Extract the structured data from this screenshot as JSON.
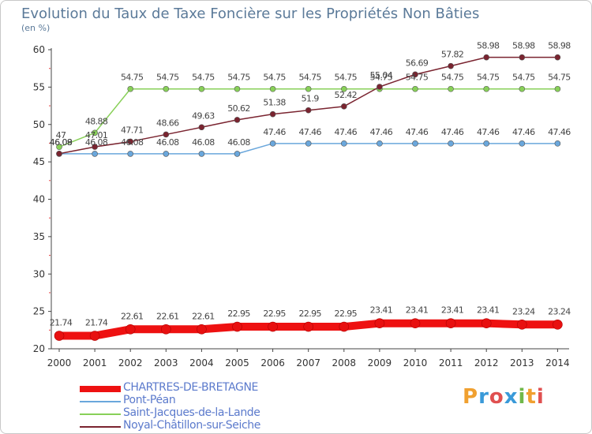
{
  "title": "Evolution du Taux de Taxe Foncière sur les Propriétés Non Bâties",
  "unit_label": "(en %)",
  "logo": {
    "letters": [
      "P",
      "r",
      "o",
      "x",
      "i",
      "t",
      "i"
    ],
    "colors": [
      "#f0a030",
      "#3a9ad9",
      "#e05050",
      "#3a9ad9",
      "#70b84a",
      "#f0a030",
      "#e05050"
    ]
  },
  "chart_data": {
    "type": "line",
    "title": "Evolution du Taux de Taxe Foncière sur les Propriétés Non Bâties",
    "ylabel": "(en %)",
    "xlabel": "",
    "x": [
      "2000",
      "2001",
      "2002",
      "2003",
      "2004",
      "2005",
      "2006",
      "2007",
      "2008",
      "2009",
      "2010",
      "2011",
      "2012",
      "2013",
      "2014"
    ],
    "ylim": [
      20,
      60
    ],
    "yticks": [
      "20",
      "25",
      "30",
      "35",
      "40",
      "45",
      "50",
      "55",
      "60"
    ],
    "grid": false,
    "legend_position": "bottom-left",
    "series": [
      {
        "name": "CHARTRES-DE-BRETAGNE",
        "color": "#ee1111",
        "values": [
          21.74,
          21.74,
          22.61,
          22.61,
          22.61,
          22.95,
          22.95,
          22.95,
          22.95,
          23.41,
          23.41,
          23.41,
          23.41,
          23.24,
          23.24
        ],
        "labels": [
          "21.74",
          "21.74",
          "22.61",
          "22.61",
          "22.61",
          "22.95",
          "22.95",
          "22.95",
          "22.95",
          "23.41",
          "23.41",
          "23.41",
          "23.41",
          "23.24",
          "23.24"
        ]
      },
      {
        "name": "Pont-Péan",
        "color": "#6aa7dc",
        "values": [
          46.08,
          46.08,
          46.08,
          46.08,
          46.08,
          46.08,
          47.46,
          47.46,
          47.46,
          47.46,
          47.46,
          47.46,
          47.46,
          47.46,
          47.46
        ],
        "labels": [
          "46.08",
          "46.08",
          "46.08",
          "46.08",
          "46.08",
          "46.08",
          "47.46",
          "47.46",
          "47.46",
          "47.46",
          "47.46",
          "47.46",
          "47.46",
          "47.46",
          "47.46"
        ]
      },
      {
        "name": "Saint-Jacques-de-la-Lande",
        "color": "#88d058",
        "values": [
          47,
          48.88,
          54.75,
          54.75,
          54.75,
          54.75,
          54.75,
          54.75,
          54.75,
          54.75,
          54.75,
          54.75,
          54.75,
          54.75,
          54.75
        ],
        "labels": [
          "47",
          "48.88",
          "54.75",
          "54.75",
          "54.75",
          "54.75",
          "54.75",
          "54.75",
          "54.75",
          "54.75",
          "54.75",
          "54.75",
          "54.75",
          "54.75",
          "54.75"
        ]
      },
      {
        "name": "Noyal-Châtillon-sur-Seiche",
        "color": "#7a2430",
        "values": [
          46.09,
          47.01,
          47.71,
          48.66,
          49.63,
          50.62,
          51.38,
          51.9,
          52.42,
          55.04,
          56.69,
          57.82,
          58.98,
          58.98,
          58.98
        ],
        "labels": [
          "46.09",
          "47.01",
          "47.71",
          "48.66",
          "49.63",
          "50.62",
          "51.38",
          "51.9",
          "52.42",
          "55.04",
          "56.69",
          "57.82",
          "58.98",
          "58.98",
          "58.98"
        ]
      }
    ]
  }
}
